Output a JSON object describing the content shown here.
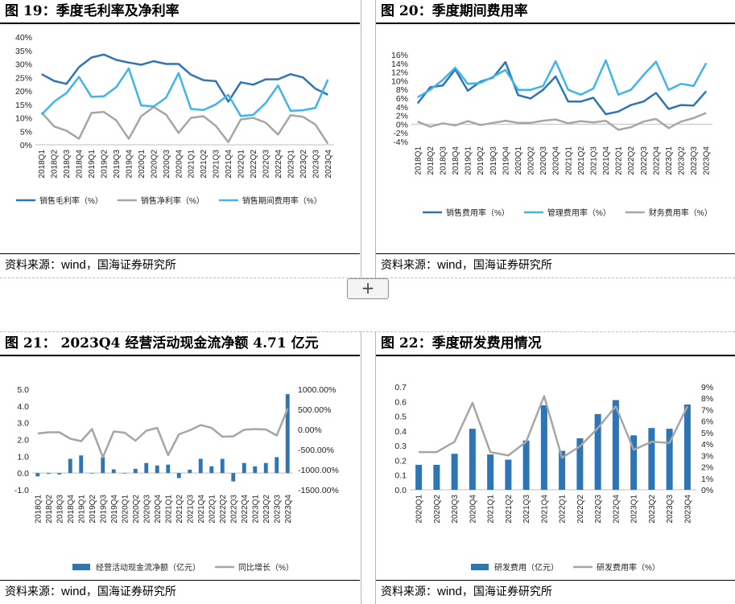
{
  "add_button": {
    "label": "+"
  },
  "panels": [
    {
      "title": "图 19：季度毛利率及净利率",
      "source_prefix": "资料来源：",
      "source_wind": "wind",
      "source_suffix": "，国海证券研究所"
    },
    {
      "title": "图 20：季度期间费用率",
      "source_prefix": "资料来源：",
      "source_wind": "wind",
      "source_suffix": "，国海证券研究所"
    },
    {
      "title": "图 21：  2023Q4 经营活动现金流净额 4.71 亿元",
      "source_prefix": "资料来源：",
      "source_wind": "wind",
      "source_suffix": "，国海证券研究所"
    },
    {
      "title": "图 22：季度研发费用情况",
      "source_prefix": "资料来源：",
      "source_wind": "wind",
      "source_suffix": "，国海证券研究所"
    }
  ],
  "chart_data": [
    {
      "type": "line",
      "categories": [
        "2018Q1",
        "2018Q2",
        "2018Q3",
        "2018Q4",
        "2019Q1",
        "2019Q2",
        "2019Q3",
        "2019Q4",
        "2020Q1",
        "2020Q2",
        "2020Q3",
        "2020Q4",
        "2021Q1",
        "2021Q2",
        "2021Q3",
        "2021Q4",
        "2022Q1",
        "2022Q2",
        "2022Q3",
        "2022Q4",
        "2023Q1",
        "2023Q2",
        "2023Q3",
        "2023Q4"
      ],
      "y_ticks": [
        "0%",
        "5%",
        "10%",
        "15%",
        "20%",
        "25%",
        "30%",
        "35%",
        "40%"
      ],
      "ylim": [
        0,
        40
      ],
      "series": [
        {
          "name": "销售毛利率（%）",
          "color": "#2e75b6",
          "values": [
            26.2,
            23.7,
            22.6,
            28.8,
            32.4,
            33.5,
            31.5,
            30.5,
            29.7,
            31.0,
            30.0,
            30.0,
            26.0,
            24.0,
            23.6,
            16.0,
            23.2,
            22.3,
            24.3,
            24.3,
            26.2,
            25.0,
            20.8,
            18.6
          ]
        },
        {
          "name": "销售净利率（%）",
          "color": "#a6a6a6",
          "values": [
            12.0,
            6.8,
            5.2,
            2.2,
            11.8,
            12.2,
            9.0,
            2.2,
            10.6,
            14.0,
            11.2,
            4.4,
            10.0,
            10.6,
            7.0,
            1.0,
            9.4,
            10.0,
            8.2,
            3.8,
            11.0,
            10.4,
            7.5,
            0.4
          ]
        },
        {
          "name": "销售期间费用率（%）",
          "color": "#40b4ec",
          "values": [
            11.2,
            16.0,
            19.2,
            25.2,
            17.8,
            18.0,
            21.4,
            28.3,
            14.6,
            14.2,
            17.5,
            26.6,
            13.3,
            12.9,
            15.0,
            18.5,
            10.7,
            11.1,
            15.5,
            22.0,
            12.6,
            12.8,
            13.7,
            24.2
          ]
        }
      ]
    },
    {
      "type": "line",
      "categories": [
        "2018Q1",
        "2018Q2",
        "2018Q3",
        "2018Q4",
        "2019Q1",
        "2019Q2",
        "2019Q3",
        "2019Q4",
        "2020Q1",
        "2020Q2",
        "2020Q3",
        "2020Q4",
        "2021Q1",
        "2021Q2",
        "2021Q3",
        "2021Q4",
        "2022Q1",
        "2022Q2",
        "2022Q3",
        "2022Q4",
        "2023Q1",
        "2023Q2",
        "2023Q3",
        "2023Q4"
      ],
      "y_ticks": [
        "-4%",
        "-2%",
        "0%",
        "2%",
        "4%",
        "6%",
        "8%",
        "10%",
        "12%",
        "14%",
        "16%"
      ],
      "ylim": [
        -4,
        16
      ],
      "series": [
        {
          "name": "销售费用率（%）",
          "color": "#2e75b6",
          "values": [
            4.8,
            8.5,
            8.9,
            12.6,
            7.7,
            9.8,
            10.7,
            14.3,
            6.7,
            5.9,
            7.9,
            11.0,
            5.2,
            5.2,
            6.1,
            2.3,
            2.9,
            4.4,
            5.2,
            7.2,
            3.5,
            4.4,
            4.3,
            7.6
          ]
        },
        {
          "name": "管理费用率（%）",
          "color": "#40b4ec",
          "values": [
            6.2,
            7.9,
            10.2,
            13.0,
            9.3,
            9.5,
            10.9,
            12.5,
            7.9,
            7.9,
            8.8,
            14.5,
            7.9,
            6.8,
            8.2,
            14.7,
            6.8,
            7.9,
            11.3,
            14.4,
            7.9,
            9.3,
            8.8,
            14.1
          ]
        },
        {
          "name": "财务费用率（%）",
          "color": "#a6a6a6",
          "values": [
            0.6,
            -0.6,
            0.2,
            -0.3,
            0.7,
            -0.2,
            0.3,
            0.8,
            0.3,
            0.3,
            0.8,
            1.1,
            0.2,
            0.7,
            0.4,
            0.8,
            -1.3,
            -0.7,
            0.6,
            1.2,
            -0.9,
            0.6,
            1.4,
            2.6
          ]
        }
      ]
    },
    {
      "type": "bar+line",
      "categories": [
        "2018Q1",
        "2018Q2",
        "2018Q3",
        "2018Q4",
        "2019Q1",
        "2019Q2",
        "2019Q3",
        "2019Q4",
        "2020Q1",
        "2020Q2",
        "2020Q3",
        "2020Q4",
        "2021Q1",
        "2021Q2",
        "2021Q3",
        "2021Q4",
        "2022Q1",
        "2022Q2",
        "2022Q3",
        "2022Q4",
        "2023Q1",
        "2023Q2",
        "2023Q3",
        "2023Q4"
      ],
      "y_left_ticks": [
        "-1.0",
        "0.0",
        "1.0",
        "2.0",
        "3.0",
        "4.0",
        "5.0"
      ],
      "y_right_ticks": [
        "-1500.00%",
        "-1000.00%",
        "-500.00%",
        "0.00%",
        "500.00%",
        "1000.00%"
      ],
      "ylim_left": [
        -1,
        5
      ],
      "ylim_right": [
        -1500,
        1000
      ],
      "series": [
        {
          "name": "经营活动现金流净额（亿元）",
          "kind": "bar",
          "axis": "left",
          "color": "#2e75b6",
          "values": [
            -0.2,
            -0.05,
            -0.08,
            0.85,
            1.05,
            0.0,
            0.95,
            0.22,
            0.0,
            0.25,
            0.6,
            0.45,
            0.5,
            -0.3,
            0.2,
            0.85,
            0.4,
            0.85,
            -0.5,
            0.6,
            0.4,
            0.6,
            0.95,
            4.71
          ]
        },
        {
          "name": "同比增长（%）",
          "kind": "line",
          "axis": "right",
          "color": "#a6a6a6",
          "values": [
            -100,
            -70,
            -70,
            -230,
            -290,
            10,
            -690,
            -50,
            -80,
            -280,
            -30,
            40,
            -640,
            -120,
            -20,
            110,
            40,
            -180,
            -170,
            -5,
            10,
            0,
            -150,
            520
          ]
        }
      ]
    },
    {
      "type": "bar+line",
      "categories": [
        "2020Q1",
        "2020Q2",
        "2020Q3",
        "2020Q4",
        "2021Q1",
        "2021Q2",
        "2021Q3",
        "2021Q4",
        "2022Q1",
        "2022Q2",
        "2022Q3",
        "2022Q4",
        "2023Q1",
        "2023Q2",
        "2023Q3",
        "2023Q4"
      ],
      "y_left_ticks": [
        "0.0",
        "0.1",
        "0.2",
        "0.3",
        "0.4",
        "0.5",
        "0.6",
        "0.7"
      ],
      "y_right_ticks": [
        "0%",
        "1%",
        "2%",
        "3%",
        "4%",
        "5%",
        "6%",
        "7%",
        "8%",
        "9%"
      ],
      "ylim_left": [
        0,
        0.7
      ],
      "ylim_right": [
        0,
        9
      ],
      "series": [
        {
          "name": "研发费用（亿元）",
          "kind": "bar",
          "axis": "left",
          "color": "#2e75b6",
          "values": [
            0.17,
            0.17,
            0.245,
            0.415,
            0.24,
            0.205,
            0.335,
            0.575,
            0.265,
            0.35,
            0.515,
            0.61,
            0.37,
            0.42,
            0.415,
            0.58
          ]
        },
        {
          "name": "研发费用率（%）",
          "kind": "line",
          "axis": "right",
          "color": "#a6a6a6",
          "values": [
            3.3,
            3.3,
            4.2,
            7.6,
            3.3,
            3.0,
            4.2,
            8.2,
            2.8,
            3.8,
            5.4,
            7.3,
            3.5,
            4.2,
            4.1,
            7.3
          ]
        }
      ]
    }
  ]
}
